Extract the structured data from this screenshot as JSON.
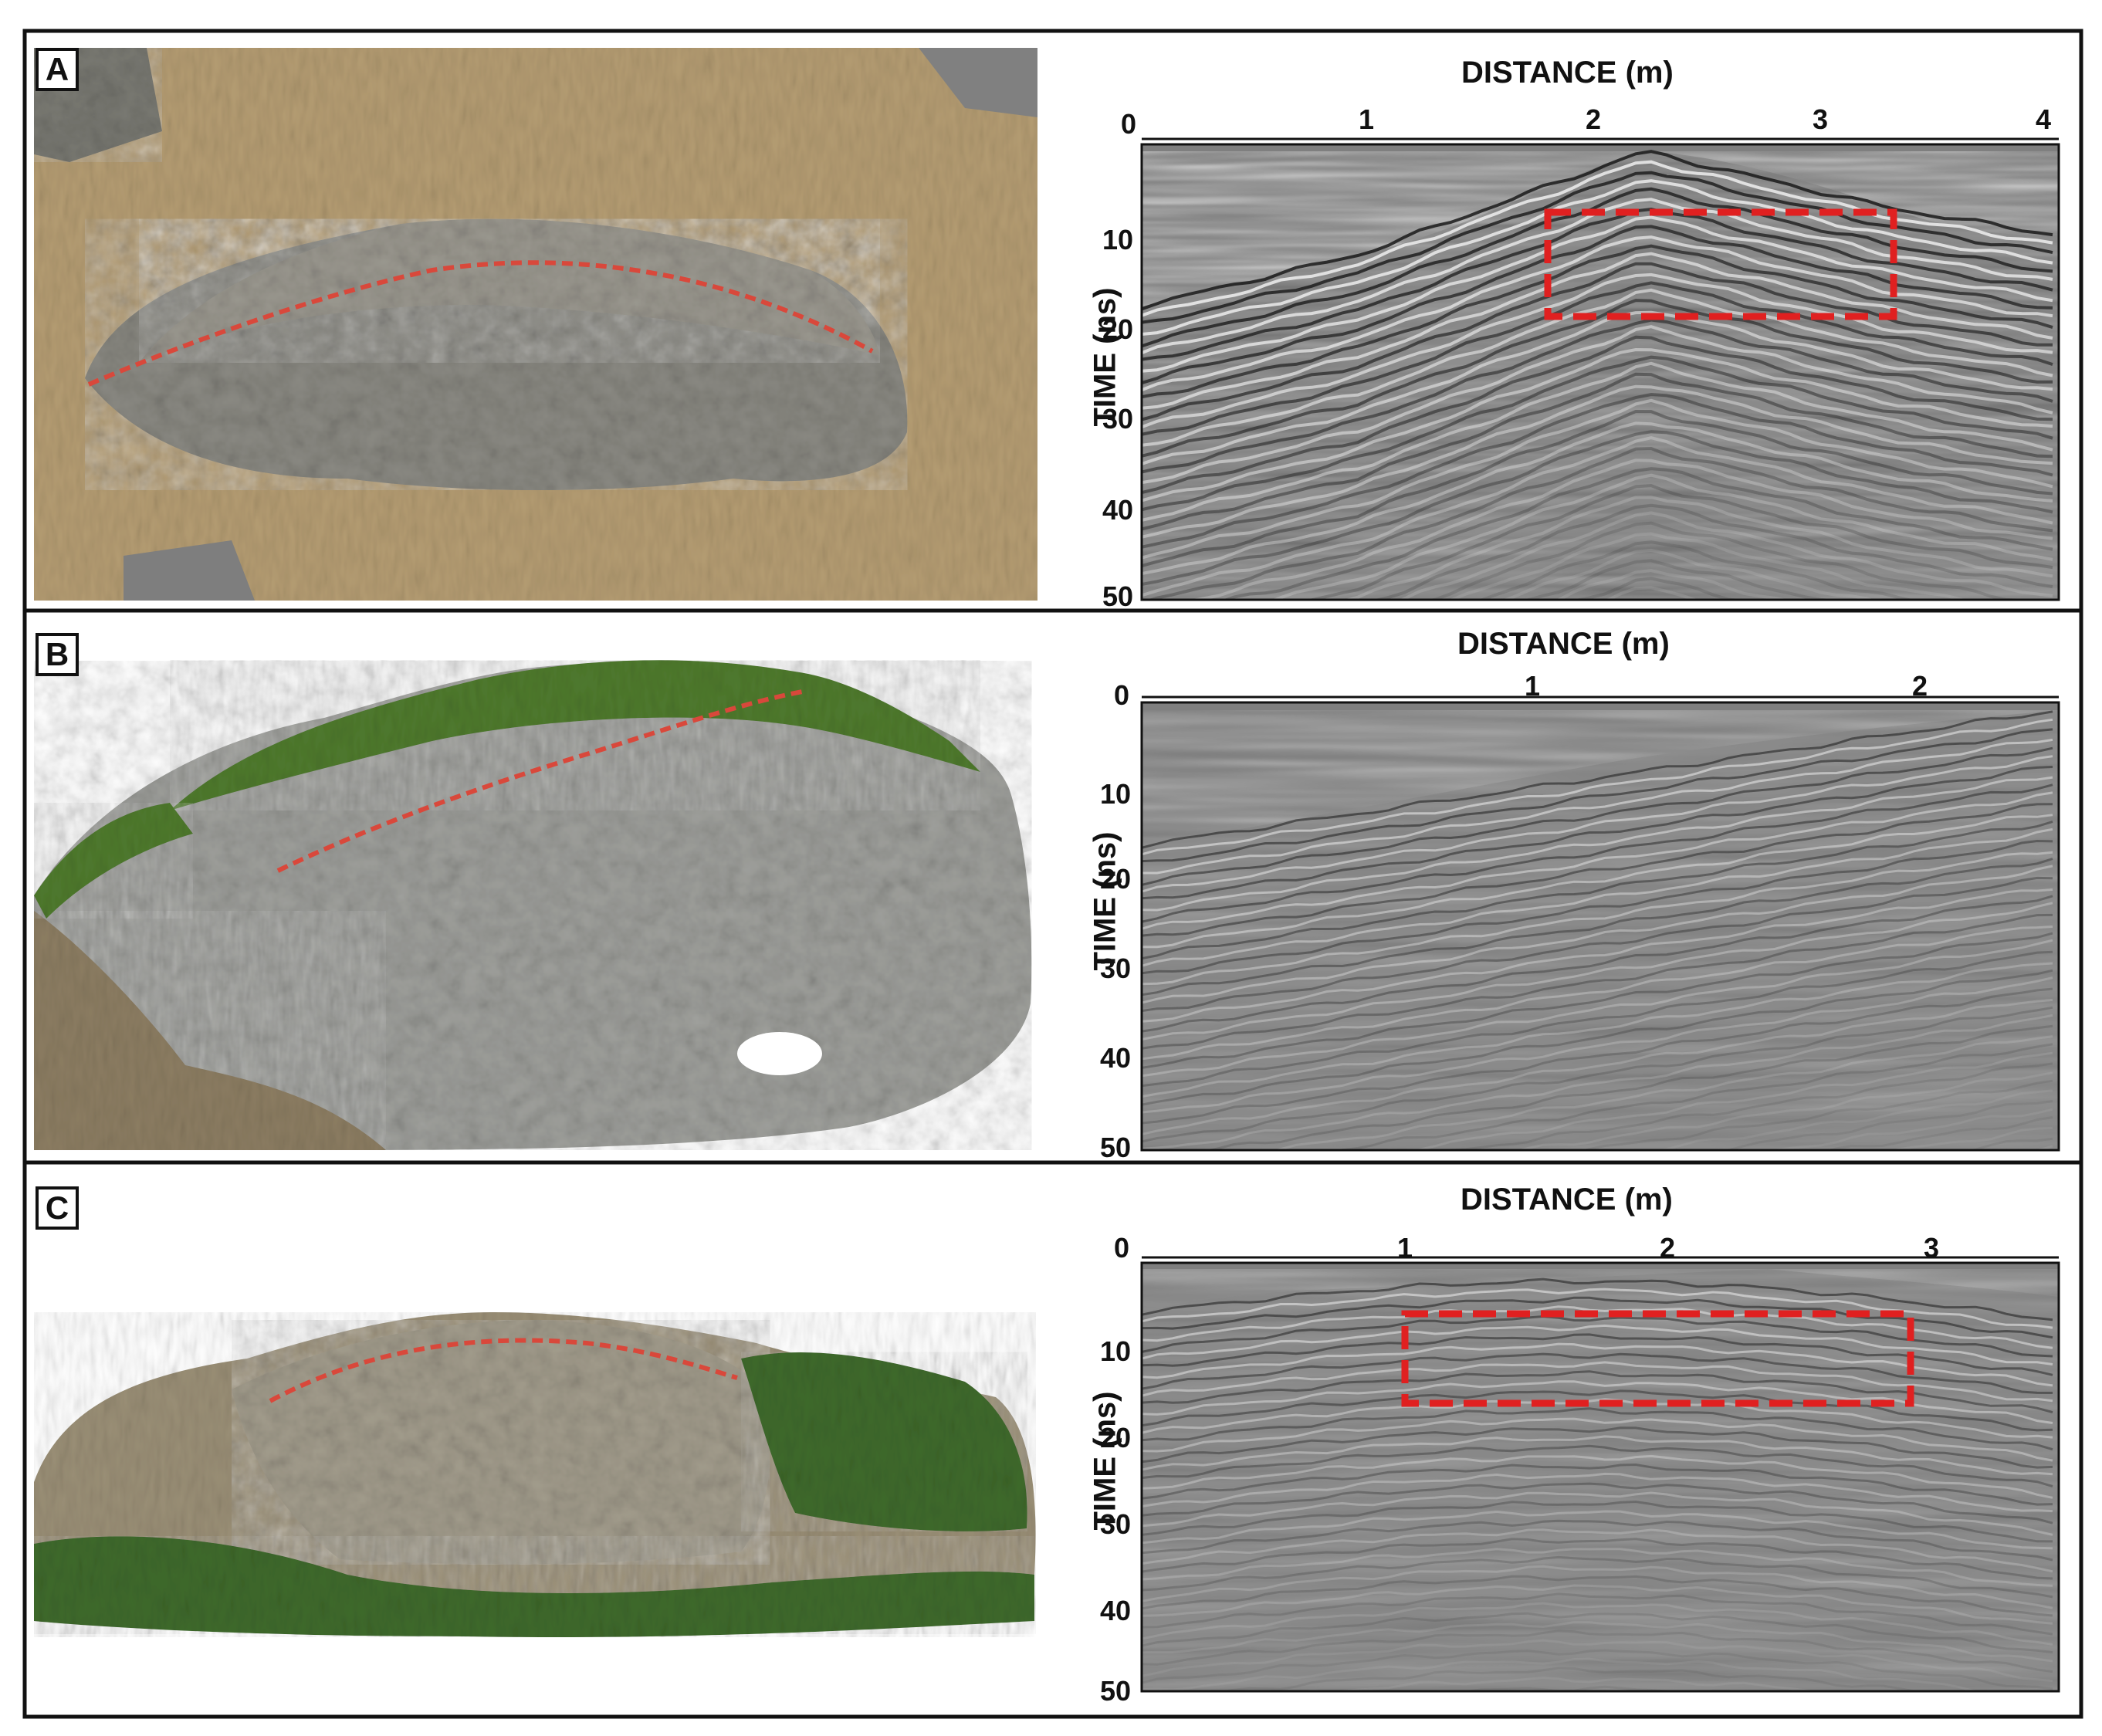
{
  "panels": [
    {
      "letter": "A",
      "xlabel": "DISTANCE (m)",
      "ylabel": "TIME (ns)",
      "xticks": [
        "0",
        "1",
        "2",
        "3",
        "4"
      ],
      "yticks": [
        "10",
        "20",
        "30",
        "40",
        "50"
      ],
      "photo_colors": {
        "ground": "#b49c72",
        "stones": "#8b8a83",
        "profile_line": "#d9483b"
      },
      "has_highlight_box": true
    },
    {
      "letter": "B",
      "xlabel": "DISTANCE (m)",
      "ylabel": "TIME (ns)",
      "xticks": [
        "0",
        "1",
        "2"
      ],
      "yticks": [
        "10",
        "20",
        "30",
        "40",
        "50"
      ],
      "photo_colors": {
        "ground": "#8c7d62",
        "stones": "#9fa09c",
        "vegetation": "#4f7a2e",
        "profile_line": "#d9483b"
      },
      "has_highlight_box": false
    },
    {
      "letter": "C",
      "xlabel": "DISTANCE (m)",
      "ylabel": "TIME (ns)",
      "xticks": [
        "0",
        "1",
        "2",
        "3"
      ],
      "yticks": [
        "10",
        "20",
        "30",
        "40",
        "50"
      ],
      "photo_colors": {
        "ground": "#9a8f76",
        "stones": "#a39d8d",
        "vegetation": "#3f6a2c",
        "profile_line": "#d9483b"
      },
      "has_highlight_box": true
    }
  ],
  "colors": {
    "frame": "#111111",
    "radargram_bg": "#7f7f7f",
    "highlight_box": "#e02020"
  }
}
